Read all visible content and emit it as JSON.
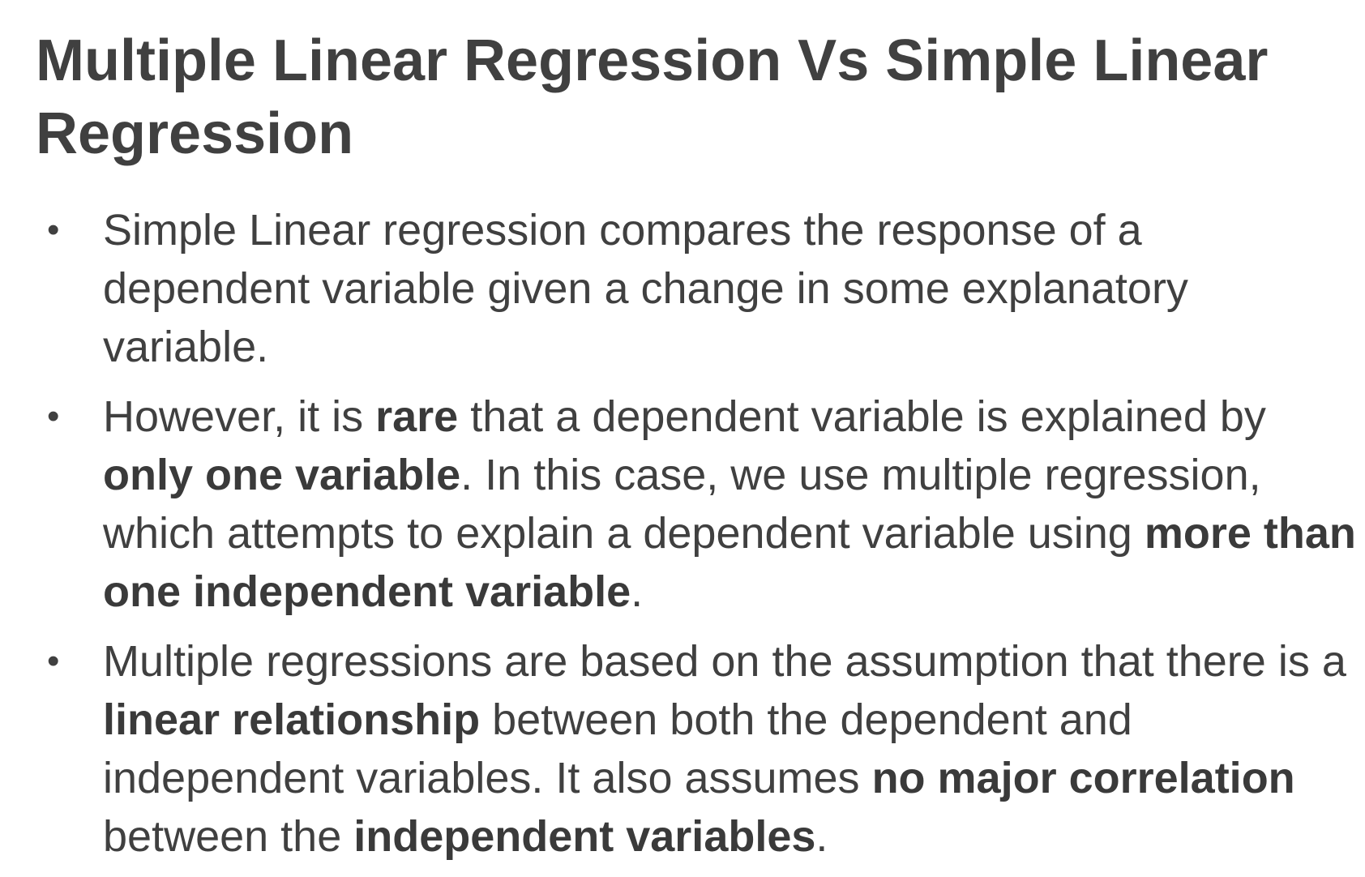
{
  "slide": {
    "title": "Multiple Linear Regression Vs Simple Linear Regression",
    "bullet_marker": "•",
    "bullets": [
      {
        "segments": [
          {
            "text": "Simple Linear regression compares the response of a dependent variable given a change in some explanatory variable.",
            "bold": false
          }
        ]
      },
      {
        "segments": [
          {
            "text": "However, it is ",
            "bold": false
          },
          {
            "text": "rare",
            "bold": true
          },
          {
            "text": " that a dependent variable is explained by ",
            "bold": false
          },
          {
            "text": "only one variable",
            "bold": true
          },
          {
            "text": ". In this case, we use multiple regression, which attempts to explain a dependent variable using ",
            "bold": false
          },
          {
            "text": "more than one independent variable",
            "bold": true
          },
          {
            "text": ".",
            "bold": false
          }
        ]
      },
      {
        "segments": [
          {
            "text": "Multiple regressions are based on the assumption that there is a ",
            "bold": false
          },
          {
            "text": "linear relationship",
            "bold": true
          },
          {
            "text": " between both the dependent and independent variables. It also assumes ",
            "bold": false
          },
          {
            "text": "no major correlation",
            "bold": true
          },
          {
            "text": " between the ",
            "bold": false
          },
          {
            "text": "independent variables",
            "bold": true
          },
          {
            "text": ".",
            "bold": false
          }
        ]
      }
    ]
  },
  "colors": {
    "text": "#404040",
    "background": "#ffffff"
  }
}
